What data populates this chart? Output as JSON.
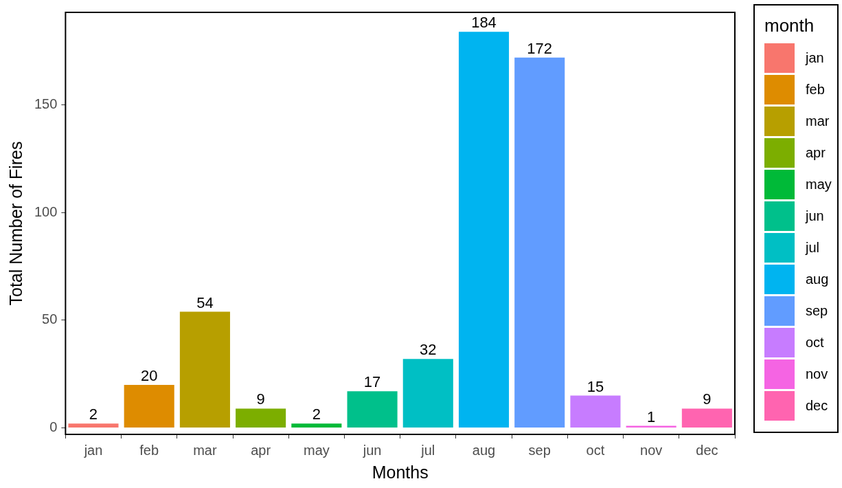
{
  "chart_data": {
    "type": "bar",
    "xlabel": "Months",
    "ylabel": "Total Number of Fires",
    "legend_title": "month",
    "stacked": true,
    "categories": [
      "jan",
      "feb",
      "mar",
      "apr",
      "may",
      "jun",
      "jul",
      "aug",
      "sep",
      "oct",
      "nov",
      "dec"
    ],
    "series": [
      {
        "name": "jan",
        "color": "#f8766d",
        "values": [
          2,
          null,
          null,
          null,
          null,
          null,
          null,
          null,
          null,
          null,
          null,
          null
        ]
      },
      {
        "name": "feb",
        "color": "#de8c00",
        "values": [
          null,
          20,
          null,
          null,
          null,
          null,
          null,
          null,
          null,
          null,
          null,
          null
        ]
      },
      {
        "name": "mar",
        "color": "#b79f00",
        "values": [
          null,
          null,
          54,
          null,
          null,
          null,
          null,
          null,
          null,
          null,
          null,
          null
        ]
      },
      {
        "name": "apr",
        "color": "#7cae00",
        "values": [
          null,
          null,
          null,
          9,
          null,
          null,
          null,
          null,
          null,
          null,
          null,
          null
        ]
      },
      {
        "name": "may",
        "color": "#00ba38",
        "values": [
          null,
          null,
          null,
          null,
          2,
          null,
          null,
          null,
          null,
          null,
          null,
          null
        ]
      },
      {
        "name": "jun",
        "color": "#00c08b",
        "values": [
          null,
          null,
          null,
          null,
          null,
          17,
          null,
          null,
          null,
          null,
          null,
          null
        ]
      },
      {
        "name": "jul",
        "color": "#00bfc4",
        "values": [
          null,
          null,
          null,
          null,
          null,
          null,
          32,
          null,
          null,
          null,
          null,
          null
        ]
      },
      {
        "name": "aug",
        "color": "#00b4f0",
        "values": [
          null,
          null,
          null,
          null,
          null,
          null,
          null,
          184,
          null,
          null,
          null,
          null
        ]
      },
      {
        "name": "sep",
        "color": "#619cff",
        "values": [
          null,
          null,
          null,
          null,
          null,
          null,
          null,
          null,
          172,
          null,
          null,
          null
        ]
      },
      {
        "name": "oct",
        "color": "#c77cff",
        "values": [
          null,
          null,
          null,
          null,
          null,
          null,
          null,
          null,
          null,
          15,
          null,
          null
        ]
      },
      {
        "name": "nov",
        "color": "#f564e3",
        "values": [
          null,
          null,
          null,
          null,
          null,
          null,
          null,
          null,
          null,
          null,
          1,
          null
        ]
      },
      {
        "name": "dec",
        "color": "#ff64b0",
        "values": [
          null,
          null,
          null,
          null,
          null,
          null,
          null,
          null,
          null,
          null,
          null,
          9
        ]
      }
    ],
    "ylim": [
      -3,
      193
    ],
    "yticks": [
      0,
      50,
      100,
      150
    ],
    "grid": false,
    "data_labels": true,
    "legend": "right"
  }
}
